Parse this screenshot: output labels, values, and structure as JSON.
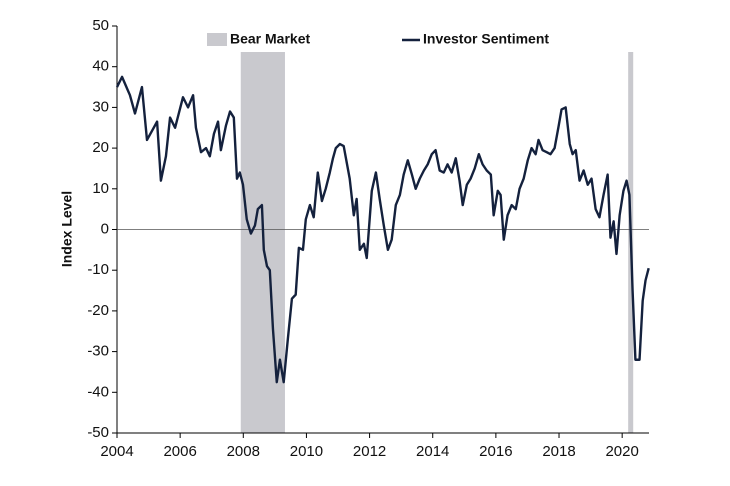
{
  "chart_data": {
    "type": "line",
    "ylabel": "Index Level",
    "x": [
      2004.0,
      2004.16,
      2004.41,
      2004.57,
      2004.79,
      2004.95,
      2005.27,
      2005.39,
      2005.55,
      2005.68,
      2005.84,
      2006.09,
      2006.25,
      2006.41,
      2006.5,
      2006.66,
      2006.82,
      2006.94,
      2007.07,
      2007.2,
      2007.29,
      2007.45,
      2007.58,
      2007.7,
      2007.8,
      2007.89,
      2007.99,
      2008.11,
      2008.24,
      2008.37,
      2008.46,
      2008.59,
      2008.65,
      2008.75,
      2008.84,
      2008.94,
      2009.06,
      2009.16,
      2009.28,
      2009.41,
      2009.54,
      2009.66,
      2009.76,
      2009.89,
      2009.98,
      2010.11,
      2010.23,
      2010.36,
      2010.49,
      2010.61,
      2010.74,
      2010.84,
      2010.93,
      2011.06,
      2011.18,
      2011.37,
      2011.5,
      2011.59,
      2011.69,
      2011.82,
      2011.91,
      2012.07,
      2012.2,
      2012.32,
      2012.45,
      2012.58,
      2012.7,
      2012.83,
      2012.96,
      2013.08,
      2013.21,
      2013.34,
      2013.46,
      2013.59,
      2013.72,
      2013.84,
      2013.97,
      2014.09,
      2014.22,
      2014.35,
      2014.47,
      2014.6,
      2014.73,
      2014.85,
      2014.95,
      2015.08,
      2015.2,
      2015.33,
      2015.46,
      2015.58,
      2015.71,
      2015.84,
      2015.93,
      2016.06,
      2016.15,
      2016.25,
      2016.37,
      2016.5,
      2016.63,
      2016.75,
      2016.88,
      2017.01,
      2017.13,
      2017.26,
      2017.35,
      2017.48,
      2017.61,
      2017.73,
      2017.86,
      2017.99,
      2018.08,
      2018.21,
      2018.34,
      2018.43,
      2018.53,
      2018.65,
      2018.78,
      2018.91,
      2019.03,
      2019.16,
      2019.28,
      2019.41,
      2019.54,
      2019.63,
      2019.73,
      2019.82,
      2019.92,
      2020.04,
      2020.14,
      2020.23,
      2020.33,
      2020.42,
      2020.55,
      2020.65,
      2020.74,
      2020.84
    ],
    "series": [
      {
        "name": "Investor Sentiment",
        "color": "#14213d",
        "values": [
          35,
          37.5,
          33,
          28.5,
          35,
          22,
          26.5,
          12,
          18,
          27.5,
          25,
          32.5,
          30,
          33,
          25,
          19,
          20,
          18,
          23.5,
          26.5,
          19.5,
          25.5,
          29,
          27.5,
          12.5,
          14,
          11,
          2.5,
          -1,
          1,
          5,
          6,
          -5,
          -9,
          -10,
          -24.5,
          -37.5,
          -32,
          -37.5,
          -27,
          -17,
          -16,
          -4.5,
          -5,
          2.5,
          6,
          3,
          14,
          7,
          10,
          14,
          17.5,
          20,
          21,
          20.5,
          12.5,
          3.5,
          7.5,
          -5,
          -3.5,
          -7,
          9.5,
          14,
          7.5,
          1,
          -5,
          -2.5,
          6,
          8.5,
          13.5,
          17,
          13.5,
          10,
          12.5,
          14.5,
          16,
          18.5,
          19.5,
          14.5,
          14,
          16,
          14,
          17.5,
          12,
          6,
          11,
          12.5,
          15,
          18.5,
          16,
          14.5,
          13.5,
          3.5,
          9.5,
          8.5,
          -2.5,
          3.5,
          6,
          5,
          10,
          12.5,
          17,
          20,
          18.5,
          22,
          19.5,
          19,
          18.5,
          20,
          25.5,
          29.5,
          30,
          21,
          18.5,
          19.5,
          12,
          14.5,
          11,
          12.5,
          5,
          3,
          8.5,
          13.5,
          -2,
          2,
          -6,
          3.5,
          9.5,
          12,
          8.5,
          -15,
          -32,
          -32,
          -17.5,
          -12.5,
          -9.5
        ]
      }
    ],
    "shade": {
      "name": "Bear Market",
      "color": "#c9c9ce",
      "regions": [
        [
          2007.92,
          2009.32
        ],
        [
          2020.19,
          2020.35
        ]
      ]
    },
    "xlim": [
      2004,
      2020.85
    ],
    "xticks": [
      2004,
      2006,
      2008,
      2010,
      2012,
      2014,
      2016,
      2018,
      2020
    ],
    "ylim": [
      -50,
      50
    ],
    "yticks": [
      -50,
      -40,
      -30,
      -20,
      -10,
      0,
      10,
      20,
      30,
      40,
      50
    ],
    "zero_line": true,
    "legend": "top"
  }
}
